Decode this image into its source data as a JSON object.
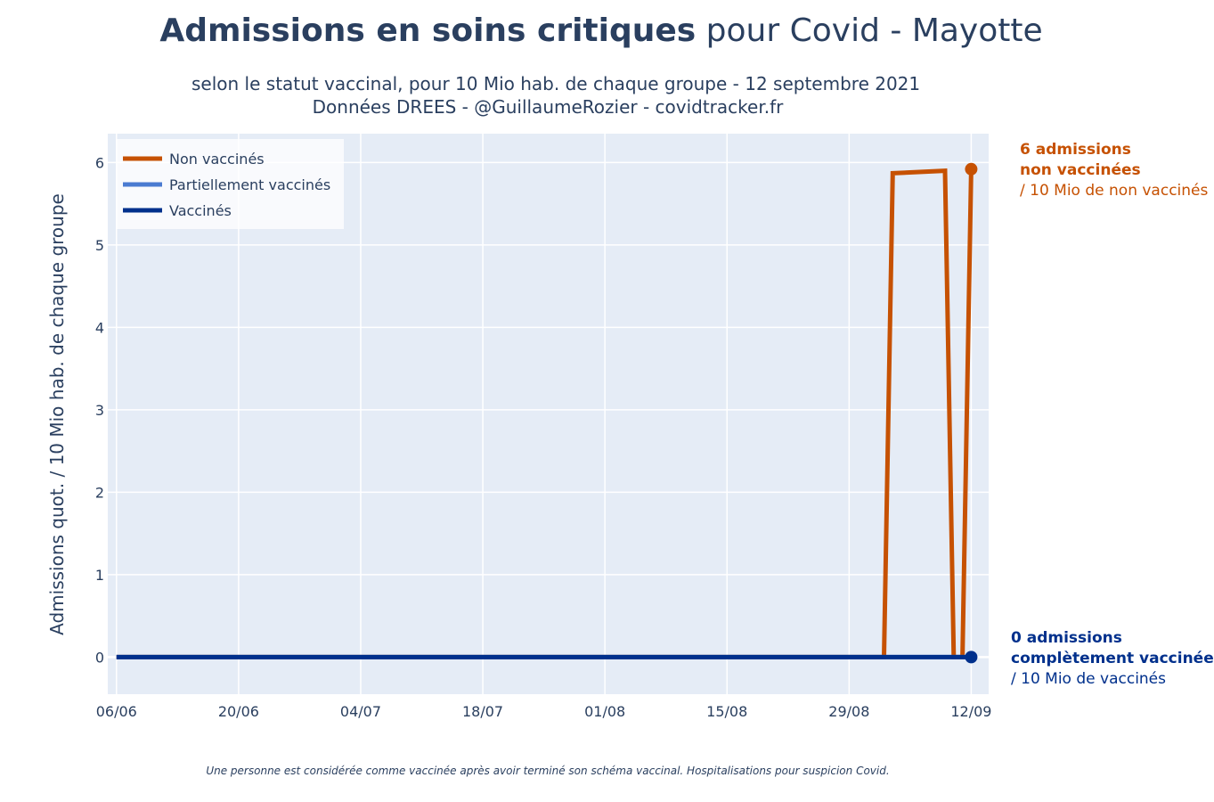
{
  "title": {
    "bold": "Admissions en soins critiques",
    "rest": " pour Covid - Mayotte"
  },
  "subtitle_line1": "selon le statut vaccinal, pour 10 Mio hab. de chaque groupe - 12 septembre 2021",
  "subtitle_line2": "Données DREES - @GuillaumeRozier - covidtracker.fr",
  "annotations": {
    "non_vaccines": {
      "line1": "6 admissions",
      "line2": "non vaccinées",
      "line3": "/ 10 Mio de non vaccinés"
    },
    "vaccines": {
      "line1": "0 admissions",
      "line2": "complètement vaccinée",
      "line3": "/ 10 Mio de vaccinés"
    }
  },
  "footnote": "Une personne est considérée comme vaccinée après avoir terminé son schéma vaccinal. Hospitalisations pour suspicion Covid.",
  "chart_data": {
    "type": "line",
    "title": "Admissions en soins critiques pour Covid - Mayotte",
    "ylabel": "Admissions quot. / 10 Mio hab. de chaque groupe",
    "xlabel": "",
    "x_start": "2021-06-06",
    "x_end": "2021-09-12",
    "xlim": [
      "2021-06-05",
      "2021-09-14"
    ],
    "ylim": [
      -0.45,
      6.35
    ],
    "x_ticks": [
      "2021-06-06",
      "2021-06-20",
      "2021-07-04",
      "2021-07-18",
      "2021-08-01",
      "2021-08-15",
      "2021-08-29",
      "2021-09-12"
    ],
    "x_tick_labels": [
      "06/06",
      "20/06",
      "04/07",
      "18/07",
      "01/08",
      "15/08",
      "29/08",
      "12/09"
    ],
    "y_ticks": [
      0,
      1,
      2,
      3,
      4,
      5,
      6
    ],
    "grid": true,
    "legend_position": "top-left",
    "background": "#e5ecf6",
    "series": [
      {
        "name": "Non vaccinés",
        "color": "#c65102",
        "points": [
          [
            "2021-06-06",
            0
          ],
          [
            "2021-09-02",
            0
          ],
          [
            "2021-09-03",
            5.87
          ],
          [
            "2021-09-09",
            5.9
          ],
          [
            "2021-09-10",
            0
          ],
          [
            "2021-09-11",
            0
          ],
          [
            "2021-09-12",
            5.92
          ]
        ],
        "end_marker": true
      },
      {
        "name": "Partiellement vaccinés",
        "color": "#4b7bd1",
        "points": [
          [
            "2021-06-06",
            0
          ],
          [
            "2021-09-12",
            0
          ]
        ],
        "end_marker": false
      },
      {
        "name": "Vaccinés",
        "color": "#00308c",
        "points": [
          [
            "2021-06-06",
            0
          ],
          [
            "2021-09-12",
            0
          ]
        ],
        "end_marker": true
      }
    ]
  }
}
